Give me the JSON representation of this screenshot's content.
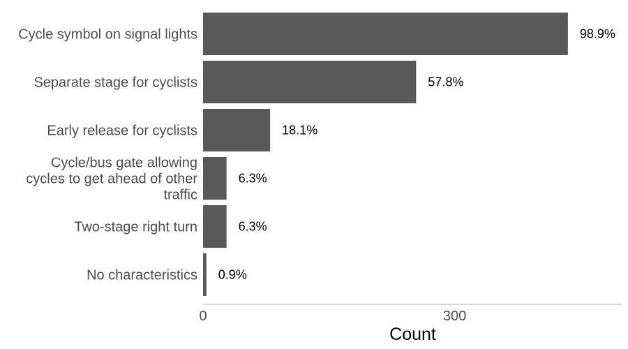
{
  "chart_data": {
    "type": "bar",
    "orientation": "horizontal",
    "categories": [
      [
        "Cycle symbol on signal lights"
      ],
      [
        "Separate stage for cyclists"
      ],
      [
        "Early release for cyclists"
      ],
      [
        "Cycle/bus gate allowing",
        "cycles to get ahead of other",
        "traffic"
      ],
      [
        "Two-stage right turn"
      ],
      [
        "No characteristics"
      ]
    ],
    "values": [
      435,
      254,
      80,
      28,
      28,
      4
    ],
    "data_labels": [
      "98.9%",
      "57.8%",
      "18.1%",
      "6.3%",
      "6.3%",
      "0.9%"
    ],
    "xlabel": "Count",
    "xlim": [
      0,
      500
    ],
    "xticks": [
      0,
      300
    ],
    "xtick_labels": [
      "0",
      "300"
    ],
    "grid": false,
    "legend": "none",
    "bar_color": "#595959",
    "axis_color": "#b3b3b3"
  }
}
